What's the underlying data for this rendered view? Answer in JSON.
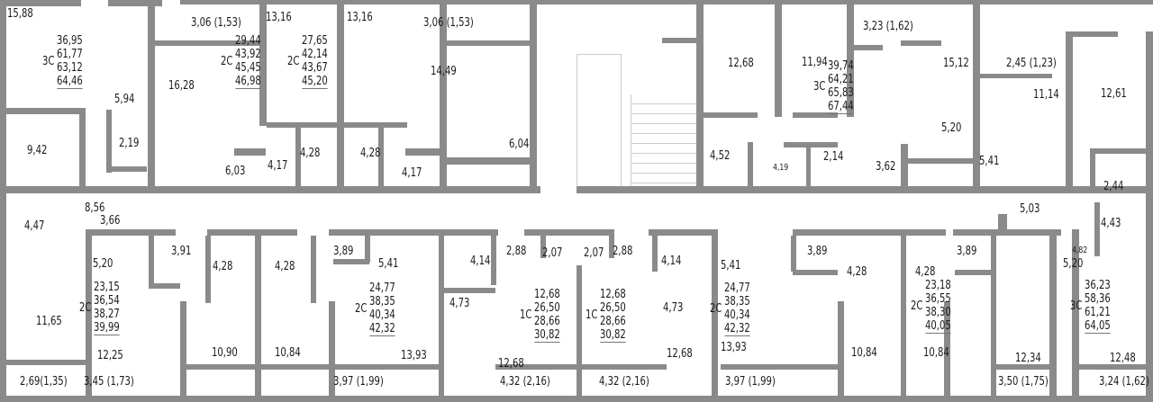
{
  "plan": {
    "apartments": [
      {
        "type": "3С",
        "areas": [
          "36,95",
          "61,77",
          "63,12",
          "64,46"
        ]
      },
      {
        "type": "2С",
        "areas": [
          "29,44",
          "43,92",
          "45,45",
          "46,98"
        ]
      },
      {
        "type": "2С",
        "areas": [
          "27,65",
          "42,14",
          "43,67",
          "45,20"
        ]
      },
      {
        "type": "3С",
        "areas": [
          "39,74",
          "64,21",
          "65,83",
          "67,44"
        ]
      },
      {
        "type": "2С",
        "areas": [
          "23,15",
          "36,54",
          "38,27",
          "39,99"
        ]
      },
      {
        "type": "2С",
        "areas": [
          "24,77",
          "38,35",
          "40,34",
          "42,32"
        ]
      },
      {
        "type": "1С",
        "areas": [
          "12,68",
          "26,50",
          "28,66",
          "30,82"
        ]
      },
      {
        "type": "1С",
        "areas": [
          "12,68",
          "26,50",
          "28,66",
          "30,82"
        ]
      },
      {
        "type": "2С",
        "areas": [
          "24,77",
          "38,35",
          "40,34",
          "42,32"
        ]
      },
      {
        "type": "2С",
        "areas": [
          "23,18",
          "36,55",
          "38,30",
          "40,05"
        ]
      },
      {
        "type": "3С",
        "areas": [
          "36,23",
          "58,36",
          "61,21",
          "64,05"
        ]
      }
    ],
    "room_areas": [
      "15,88",
      "3,06 (1,53)",
      "13,16",
      "13,16",
      "3,06 (1,53)",
      "16,28",
      "14,49",
      "5,94",
      "9,42",
      "2,19",
      "6,03",
      "4,17",
      "4,28",
      "4,28",
      "4,17",
      "6,04",
      "3,23 (1,62)",
      "12,68",
      "11,94",
      "15,12",
      "2,45 (1,23)",
      "11,14",
      "12,61",
      "5,20",
      "4,52",
      "4,19",
      "2,14",
      "3,62",
      "5,41",
      "2,44",
      "8,56",
      "3,66",
      "4,47",
      "5,20",
      "3,91",
      "4,28",
      "4,28",
      "3,89",
      "5,41",
      "4,14",
      "2,88",
      "2,07",
      "2,07",
      "2,88",
      "4,14",
      "5,41",
      "3,89",
      "4,28",
      "4,28",
      "3,89",
      "4,73",
      "4,73",
      "5,20",
      "4,43",
      "4,82",
      "5,03",
      "11,65",
      "12,25",
      "10,90",
      "10,84",
      "13,93",
      "12,68",
      "12,68",
      "13,93",
      "10,84",
      "10,84",
      "12,34",
      "12,48",
      "2,69(1,35)",
      "3,45 (1,73)",
      "3,97 (1,99)",
      "4,32 (2,16)",
      "4,32 (2,16)",
      "3,97 (1,99)",
      "3,50 (1,75)",
      "3,24 (1,62)"
    ],
    "wall_color": "#8a8a8a"
  }
}
